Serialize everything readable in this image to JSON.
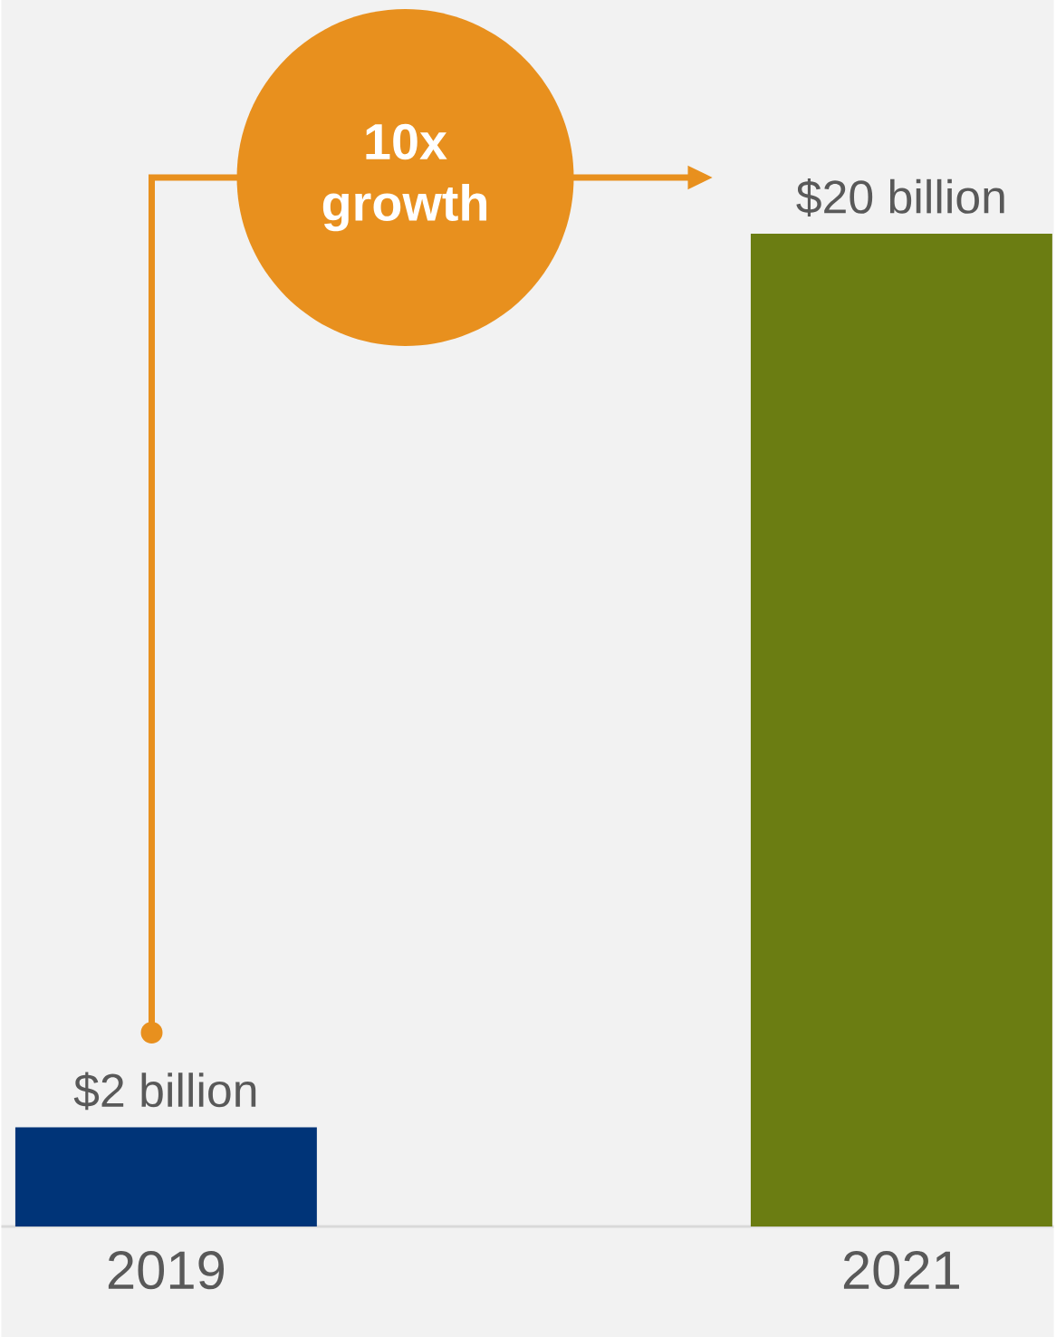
{
  "chart_data": {
    "type": "bar",
    "categories": [
      "2019",
      "2021"
    ],
    "values": [
      2,
      20
    ],
    "colors": [
      "#003478",
      "#6b7d12"
    ],
    "value_labels": [
      "$2 billion",
      "$20 billion"
    ],
    "annotations": [
      "10x growth"
    ]
  }
}
